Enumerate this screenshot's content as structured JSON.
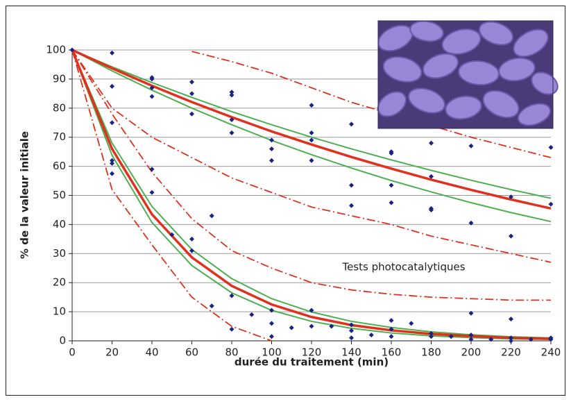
{
  "chart_data": {
    "type": "scatter",
    "xlabel": "durée du traitement (min)",
    "ylabel": "% de la valeur initiale",
    "annotation": "Tests photocatalytiques",
    "xlim": [
      0,
      240
    ],
    "xticks": [
      0,
      20,
      40,
      60,
      80,
      100,
      120,
      140,
      160,
      180,
      200,
      220,
      240
    ],
    "ylim": [
      0,
      100
    ],
    "yticks": [
      0,
      10,
      20,
      30,
      40,
      50,
      60,
      70,
      80,
      90,
      100
    ],
    "grid": true,
    "series": [
      {
        "style": "dashdot",
        "color": "#e0301e",
        "x": [
          0,
          20,
          40,
          60,
          80,
          100,
          120,
          140,
          160,
          180,
          200,
          220,
          240
        ],
        "values": [
          null,
          null,
          null,
          99.5,
          96,
          92,
          87,
          82,
          78,
          74,
          70,
          66.5,
          63
        ]
      },
      {
        "style": "dashdot",
        "color": "#e0301e",
        "x": [
          0,
          20,
          40,
          60,
          80,
          100,
          120,
          140,
          160,
          180,
          200,
          220,
          240
        ],
        "values": [
          100,
          80,
          70,
          63,
          56,
          51,
          46,
          43,
          40,
          36,
          33,
          30,
          27
        ]
      },
      {
        "style": "dashdot",
        "color": "#e0301e",
        "x": [
          0,
          20,
          40,
          60,
          80,
          100,
          120,
          140,
          160,
          180,
          200,
          220,
          240
        ],
        "values": [
          100,
          78,
          58,
          42,
          31,
          25,
          20,
          17.5,
          16,
          15,
          14.5,
          14,
          14
        ]
      },
      {
        "style": "dashdot",
        "color": "#e0301e",
        "x": [
          0,
          20,
          40,
          60,
          80,
          100
        ],
        "values": [
          100,
          52,
          33,
          15,
          5,
          0
        ]
      },
      {
        "style": "solid",
        "color": "#4caf50",
        "x": [
          0,
          20,
          40,
          60,
          80,
          100,
          120,
          140,
          160,
          180,
          200,
          220,
          240
        ],
        "values": [
          100,
          94.2,
          88.8,
          83.7,
          78.8,
          74.3,
          70,
          66,
          62.2,
          58.6,
          55.2,
          52,
          49
        ]
      },
      {
        "style": "solid",
        "color": "#4caf50",
        "x": [
          0,
          20,
          40,
          60,
          80,
          100,
          120,
          140,
          160,
          180,
          200,
          220,
          240
        ],
        "values": [
          100,
          92.8,
          86.2,
          80,
          74.3,
          68.9,
          64,
          59.4,
          55.1,
          51.2,
          47.5,
          44.1,
          41
        ]
      },
      {
        "style": "solid",
        "color": "#4caf50",
        "x": [
          0,
          20,
          40,
          60,
          80,
          100,
          120,
          140,
          160,
          180,
          200,
          220,
          240
        ],
        "values": [
          100,
          68,
          46.2,
          31.4,
          21.4,
          14.5,
          9.9,
          6.7,
          4.6,
          3.1,
          2.1,
          1.4,
          1
        ]
      },
      {
        "style": "solid",
        "color": "#4caf50",
        "x": [
          0,
          20,
          40,
          60,
          80,
          100,
          120,
          140,
          160,
          180,
          200,
          220,
          240
        ],
        "values": [
          100,
          63.8,
          40.7,
          25.9,
          16.5,
          10.5,
          6.7,
          4.3,
          2.7,
          1.7,
          1.1,
          0.7,
          0.5
        ]
      },
      {
        "style": "bold",
        "color": "#e0301e",
        "x": [
          0,
          20,
          40,
          60,
          80,
          100,
          120,
          140,
          160,
          180,
          200,
          220,
          240
        ],
        "values": [
          100,
          93.7,
          87.7,
          82.1,
          76.9,
          72,
          67.5,
          63.2,
          59.2,
          55.4,
          51.9,
          48.6,
          45.5
        ]
      },
      {
        "style": "bold",
        "color": "#e0301e",
        "x": [
          0,
          20,
          40,
          60,
          80,
          100,
          120,
          140,
          160,
          180,
          200,
          220,
          240
        ],
        "values": [
          100,
          66,
          43.5,
          28.7,
          18.9,
          12.5,
          8.2,
          5.4,
          3.6,
          2.4,
          1.6,
          1,
          0.7
        ]
      },
      {
        "style": "markers",
        "color": "#1a237e",
        "x": [
          0,
          20,
          20,
          20,
          20,
          20,
          20,
          40,
          40,
          40,
          40,
          40,
          40,
          50,
          60,
          60,
          60,
          60,
          60,
          70,
          70,
          80,
          80,
          80,
          80,
          80,
          80,
          90,
          100,
          100,
          100,
          100,
          100,
          100,
          110,
          120,
          120,
          120,
          120,
          120,
          120,
          130,
          140,
          140,
          140,
          140,
          140,
          140,
          150,
          160,
          160,
          160,
          160,
          160,
          160,
          160,
          170,
          180,
          180,
          180,
          180,
          180,
          180,
          190,
          200,
          200,
          200,
          200,
          200,
          210,
          220,
          220,
          220,
          220,
          220,
          230,
          240,
          240,
          240,
          240
        ],
        "values": [
          100,
          99,
          87.5,
          75,
          62,
          61,
          57.5,
          90.5,
          90,
          87,
          84,
          59,
          51,
          36.5,
          89,
          85,
          78,
          35,
          31,
          43,
          12,
          85.5,
          84.5,
          76,
          71.5,
          15.5,
          4,
          9,
          69,
          66,
          62,
          10.5,
          6,
          1.5,
          4.5,
          81,
          71.5,
          69,
          62,
          10.5,
          5,
          5,
          74.5,
          53.5,
          46.5,
          5.5,
          3.5,
          1,
          2,
          65,
          64.5,
          53.5,
          47.5,
          7,
          4,
          1.5,
          6,
          68,
          56.5,
          45.5,
          45,
          2.5,
          1.5,
          1.5,
          67,
          40.5,
          9.5,
          2,
          0.5,
          0.5,
          49.5,
          36,
          7.5,
          1,
          0,
          0.5,
          66.5,
          47,
          1,
          0.5
        ]
      }
    ]
  }
}
